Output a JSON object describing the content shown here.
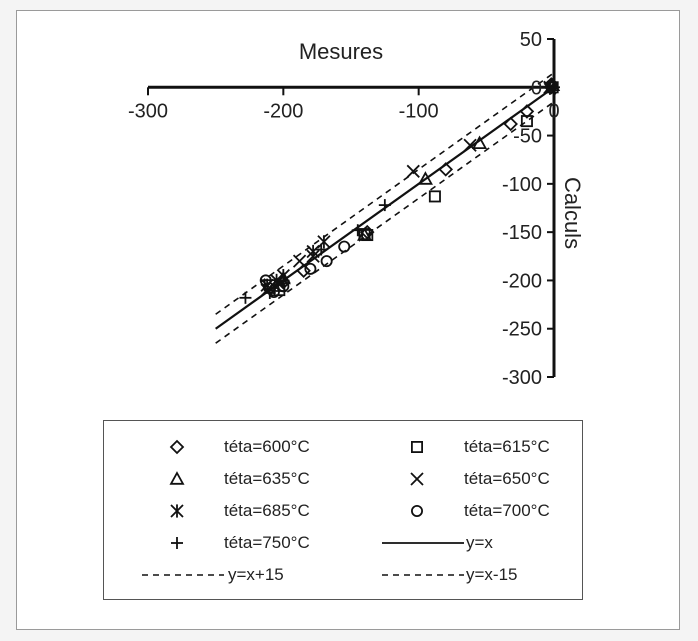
{
  "chart_data": {
    "type": "scatter",
    "xlabel": "Mesures",
    "ylabel": "Calculs",
    "xlim": [
      -300,
      0
    ],
    "ylim": [
      -300,
      50
    ],
    "x_ticks": [
      "-300",
      "-200",
      "-100",
      "0"
    ],
    "y_ticks": [
      "50",
      "0",
      "-50",
      "-100",
      "-150",
      "-200",
      "-250",
      "-300"
    ],
    "grid": false,
    "legend_position": "bottom",
    "series": [
      {
        "name": "téta=600°C",
        "marker": "diamond",
        "points": [
          [
            -2,
            0
          ],
          [
            -2,
            3
          ],
          [
            -20,
            -25
          ],
          [
            -32,
            -38
          ],
          [
            -80,
            -85
          ],
          [
            -138,
            -150
          ],
          [
            -185,
            -190
          ],
          [
            -200,
            -202
          ],
          [
            -210,
            -208
          ]
        ]
      },
      {
        "name": "téta=615°C",
        "marker": "square",
        "points": [
          [
            -1,
            0
          ],
          [
            -20,
            -35
          ],
          [
            -88,
            -113
          ],
          [
            -138,
            -153
          ],
          [
            -140,
            -152
          ],
          [
            -203,
            -210
          ],
          [
            -210,
            -205
          ]
        ]
      },
      {
        "name": "téta=635°C",
        "marker": "triangle",
        "points": [
          [
            -1,
            2
          ],
          [
            -55,
            -58
          ],
          [
            -95,
            -95
          ],
          [
            -140,
            -153
          ],
          [
            -200,
            -198
          ],
          [
            -203,
            -206
          ]
        ]
      },
      {
        "name": "téta=650°C",
        "marker": "x",
        "points": [
          [
            -3,
            0
          ],
          [
            -62,
            -60
          ],
          [
            -104,
            -87
          ],
          [
            -178,
            -175
          ],
          [
            -188,
            -180
          ],
          [
            -212,
            -210
          ]
        ]
      },
      {
        "name": "téta=685°C",
        "marker": "asterisk",
        "points": [
          [
            -3,
            -1
          ],
          [
            -170,
            -160
          ],
          [
            -178,
            -170
          ],
          [
            -200,
            -195
          ],
          [
            -205,
            -200
          ],
          [
            -212,
            -205
          ]
        ]
      },
      {
        "name": "téta=700°C",
        "marker": "circle",
        "points": [
          [
            -2,
            2
          ],
          [
            -155,
            -165
          ],
          [
            -168,
            -180
          ],
          [
            -180,
            -188
          ],
          [
            -200,
            -206
          ],
          [
            -207,
            -212
          ],
          [
            -213,
            -200
          ]
        ]
      },
      {
        "name": "téta=750°C",
        "marker": "plus",
        "points": [
          [
            0,
            0
          ],
          [
            -125,
            -122
          ],
          [
            -145,
            -148
          ],
          [
            -172,
            -168
          ],
          [
            -200,
            -200
          ],
          [
            -228,
            -218
          ],
          [
            -210,
            -213
          ]
        ]
      }
    ],
    "reference_lines": [
      {
        "name": "y=x",
        "style": "solid",
        "offset": 0
      },
      {
        "name": "y=x+15",
        "style": "dashed",
        "offset": 15
      },
      {
        "name": "y=x-15",
        "style": "dashed",
        "offset": -15
      }
    ]
  },
  "legend": {
    "items": [
      {
        "symbol": "diamond",
        "label": "téta=600°C"
      },
      {
        "symbol": "square",
        "label": "téta=615°C"
      },
      {
        "symbol": "triangle",
        "label": "téta=635°C"
      },
      {
        "symbol": "x",
        "label": "téta=650°C"
      },
      {
        "symbol": "asterisk",
        "label": "téta=685°C"
      },
      {
        "symbol": "circle",
        "label": "téta=700°C"
      },
      {
        "symbol": "plus",
        "label": "téta=750°C"
      },
      {
        "symbol": "solid-line",
        "label": "y=x"
      },
      {
        "symbol": "dashed-line",
        "label": "y=x+15"
      },
      {
        "symbol": "dashed-line",
        "label": "y=x-15"
      }
    ]
  },
  "colors": {
    "ink": "#111111",
    "frame_border": "#9a9a9a",
    "background": "#ffffff"
  }
}
